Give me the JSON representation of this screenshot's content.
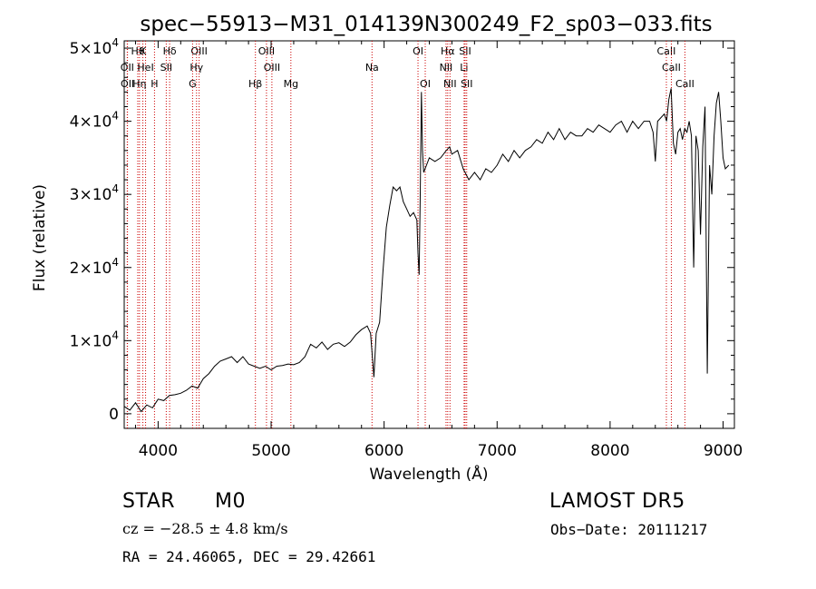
{
  "chart_data": {
    "type": "line",
    "title": "spec−55913−M31_014139N300249_F2_sp03−033.fits",
    "xlabel": "Wavelength (Å)",
    "ylabel": "Flux (relative)",
    "xlim": [
      3700,
      9100
    ],
    "ylim": [
      -2000,
      51000
    ],
    "x_ticks": [
      4000,
      5000,
      6000,
      7000,
      8000,
      9000
    ],
    "y_ticks": [
      {
        "value": 0,
        "mantissa": "0",
        "exponent": ""
      },
      {
        "value": 10000,
        "mantissa": "1×10",
        "exponent": "4"
      },
      {
        "value": 20000,
        "mantissa": "2×10",
        "exponent": "4"
      },
      {
        "value": 30000,
        "mantissa": "3×10",
        "exponent": "4"
      },
      {
        "value": 40000,
        "mantissa": "4×10",
        "exponent": "4"
      },
      {
        "value": 50000,
        "mantissa": "5×10",
        "exponent": "4"
      }
    ],
    "grid": false,
    "line_color": "#000000",
    "marker_color": "#cc0000",
    "spectrum": [
      [
        3700,
        1000
      ],
      [
        3750,
        500
      ],
      [
        3800,
        1500
      ],
      [
        3850,
        300
      ],
      [
        3900,
        1200
      ],
      [
        3950,
        800
      ],
      [
        4000,
        2000
      ],
      [
        4050,
        1800
      ],
      [
        4100,
        2500
      ],
      [
        4150,
        2600
      ],
      [
        4200,
        2800
      ],
      [
        4250,
        3200
      ],
      [
        4300,
        3800
      ],
      [
        4350,
        3500
      ],
      [
        4400,
        4800
      ],
      [
        4450,
        5500
      ],
      [
        4500,
        6500
      ],
      [
        4550,
        7200
      ],
      [
        4600,
        7500
      ],
      [
        4650,
        7800
      ],
      [
        4700,
        7000
      ],
      [
        4750,
        7800
      ],
      [
        4800,
        6800
      ],
      [
        4850,
        6500
      ],
      [
        4900,
        6200
      ],
      [
        4950,
        6500
      ],
      [
        5000,
        6000
      ],
      [
        5050,
        6500
      ],
      [
        5100,
        6600
      ],
      [
        5150,
        6800
      ],
      [
        5200,
        6700
      ],
      [
        5250,
        7000
      ],
      [
        5300,
        7800
      ],
      [
        5350,
        9500
      ],
      [
        5400,
        9000
      ],
      [
        5450,
        9800
      ],
      [
        5500,
        8800
      ],
      [
        5550,
        9500
      ],
      [
        5600,
        9700
      ],
      [
        5650,
        9200
      ],
      [
        5700,
        9800
      ],
      [
        5750,
        10800
      ],
      [
        5800,
        11500
      ],
      [
        5850,
        12000
      ],
      [
        5880,
        11000
      ],
      [
        5900,
        7000
      ],
      [
        5910,
        5000
      ],
      [
        5930,
        11000
      ],
      [
        5960,
        12500
      ],
      [
        5990,
        19500
      ],
      [
        6020,
        25500
      ],
      [
        6050,
        28500
      ],
      [
        6080,
        31000
      ],
      [
        6110,
        30500
      ],
      [
        6140,
        31000
      ],
      [
        6170,
        29000
      ],
      [
        6200,
        28000
      ],
      [
        6230,
        27000
      ],
      [
        6260,
        27500
      ],
      [
        6290,
        26500
      ],
      [
        6300,
        22000
      ],
      [
        6310,
        19000
      ],
      [
        6320,
        30000
      ],
      [
        6330,
        44000
      ],
      [
        6340,
        36000
      ],
      [
        6350,
        33000
      ],
      [
        6400,
        35000
      ],
      [
        6450,
        34500
      ],
      [
        6500,
        35000
      ],
      [
        6550,
        36000
      ],
      [
        6580,
        36500
      ],
      [
        6600,
        35500
      ],
      [
        6650,
        36000
      ],
      [
        6700,
        33500
      ],
      [
        6750,
        32000
      ],
      [
        6800,
        33000
      ],
      [
        6850,
        32000
      ],
      [
        6900,
        33500
      ],
      [
        6950,
        33000
      ],
      [
        7000,
        34000
      ],
      [
        7050,
        35500
      ],
      [
        7100,
        34500
      ],
      [
        7150,
        36000
      ],
      [
        7200,
        35000
      ],
      [
        7250,
        36000
      ],
      [
        7300,
        36500
      ],
      [
        7350,
        37500
      ],
      [
        7400,
        37000
      ],
      [
        7450,
        38500
      ],
      [
        7500,
        37500
      ],
      [
        7550,
        39000
      ],
      [
        7600,
        37500
      ],
      [
        7650,
        38500
      ],
      [
        7700,
        38000
      ],
      [
        7750,
        38000
      ],
      [
        7800,
        39000
      ],
      [
        7850,
        38500
      ],
      [
        7900,
        39500
      ],
      [
        7950,
        39000
      ],
      [
        8000,
        38500
      ],
      [
        8050,
        39500
      ],
      [
        8100,
        40000
      ],
      [
        8150,
        38500
      ],
      [
        8200,
        40000
      ],
      [
        8250,
        39000
      ],
      [
        8300,
        40000
      ],
      [
        8350,
        40000
      ],
      [
        8380,
        38500
      ],
      [
        8400,
        34500
      ],
      [
        8420,
        40000
      ],
      [
        8450,
        40500
      ],
      [
        8480,
        41000
      ],
      [
        8500,
        40000
      ],
      [
        8520,
        43000
      ],
      [
        8540,
        44500
      ],
      [
        8560,
        37000
      ],
      [
        8580,
        35500
      ],
      [
        8600,
        38500
      ],
      [
        8620,
        39000
      ],
      [
        8640,
        37500
      ],
      [
        8660,
        39000
      ],
      [
        8680,
        38500
      ],
      [
        8700,
        40000
      ],
      [
        8720,
        38000
      ],
      [
        8740,
        20000
      ],
      [
        8760,
        38000
      ],
      [
        8780,
        36000
      ],
      [
        8800,
        24500
      ],
      [
        8820,
        36500
      ],
      [
        8840,
        42000
      ],
      [
        8860,
        5500
      ],
      [
        8880,
        34000
      ],
      [
        8900,
        30000
      ],
      [
        8920,
        38000
      ],
      [
        8940,
        42500
      ],
      [
        8960,
        44000
      ],
      [
        8980,
        40000
      ],
      [
        9000,
        35000
      ],
      [
        9020,
        33500
      ],
      [
        9050,
        34000
      ]
    ],
    "line_markers": [
      {
        "x": 3820,
        "label": "Hθ",
        "row": 0
      },
      {
        "x": 3865,
        "label": "K",
        "row": 0
      },
      {
        "x": 4102,
        "label": "Hδ",
        "row": 0
      },
      {
        "x": 4363,
        "label": "OIII",
        "row": 0
      },
      {
        "x": 4959,
        "label": "OIII",
        "row": 0
      },
      {
        "x": 6300,
        "label": "OI",
        "row": 0
      },
      {
        "x": 6563,
        "label": "Hα",
        "row": 0
      },
      {
        "x": 6717,
        "label": "SII",
        "row": 0
      },
      {
        "x": 8498,
        "label": "CaII",
        "row": 0
      },
      {
        "x": 3727,
        "label": "OII",
        "row": 1
      },
      {
        "x": 3889,
        "label": "HeI",
        "row": 1
      },
      {
        "x": 4072,
        "label": "SII",
        "row": 1
      },
      {
        "x": 4340,
        "label": "Hγ",
        "row": 1
      },
      {
        "x": 5007,
        "label": "OIII",
        "row": 1
      },
      {
        "x": 6548,
        "label": "NII",
        "row": 1
      },
      {
        "x": 6708,
        "label": "Li",
        "row": 1
      },
      {
        "x": 8542,
        "label": "CaII",
        "row": 1
      },
      {
        "x": 3729,
        "label": "OII",
        "row": 2
      },
      {
        "x": 3835,
        "label": "Hη",
        "row": 2
      },
      {
        "x": 3968,
        "label": "H",
        "row": 2
      },
      {
        "x": 4305,
        "label": "G",
        "row": 2
      },
      {
        "x": 4861,
        "label": "Hβ",
        "row": 2
      },
      {
        "x": 5175,
        "label": "Mg",
        "row": 2
      },
      {
        "x": 6364,
        "label": "OI",
        "row": 2
      },
      {
        "x": 6583,
        "label": "NII",
        "row": 2
      },
      {
        "x": 6731,
        "label": "SII",
        "row": 2
      },
      {
        "x": 8662,
        "label": "CaII",
        "row": 2
      },
      {
        "x": 5893,
        "label": "Na",
        "row": 1
      }
    ]
  },
  "info": {
    "classification": "STAR",
    "subclass": "M0",
    "survey": "LAMOST  DR5",
    "redshift": "cz = −28.5 ± 4.8 km/s",
    "obs_date": "Obs−Date: 20111217",
    "coords": "RA =  24.46065, DEC =  29.42661"
  }
}
